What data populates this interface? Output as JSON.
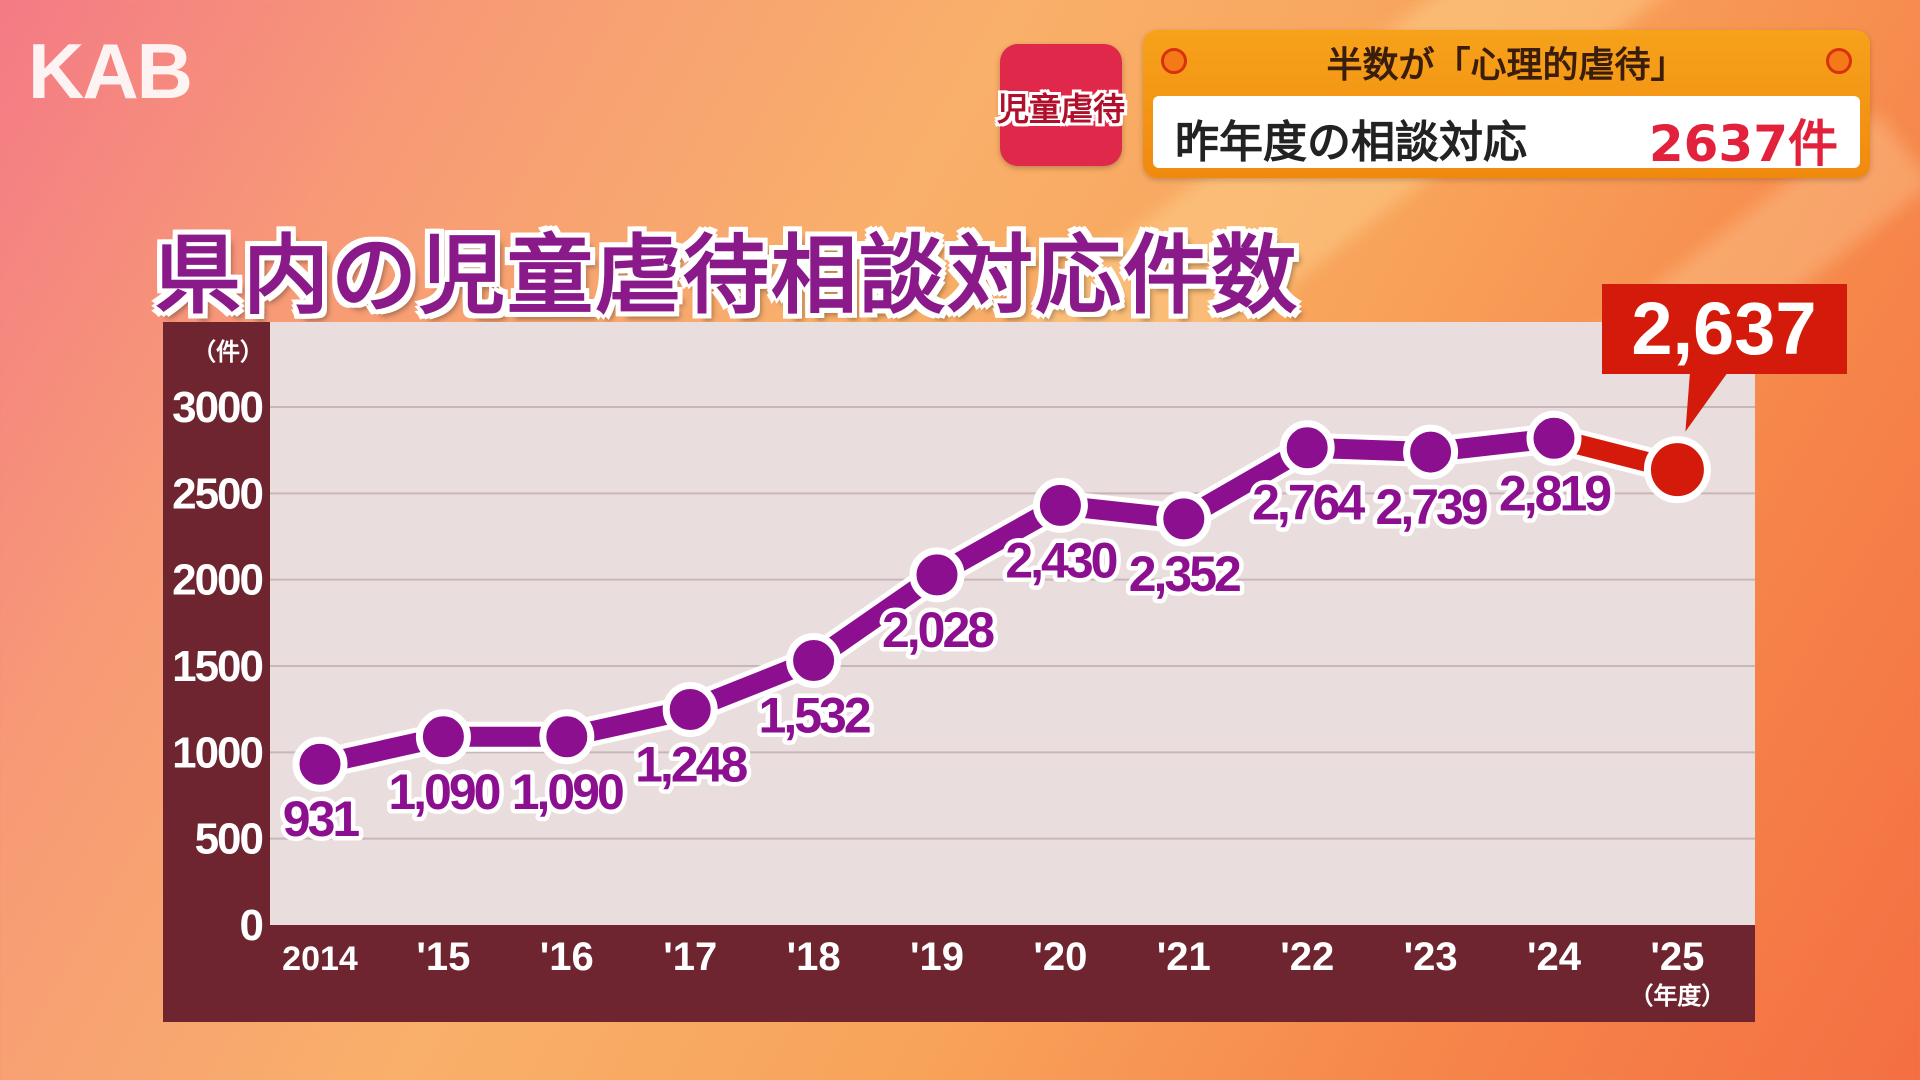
{
  "logo": "KAB",
  "topic_badge": "児童虐待",
  "headline": {
    "sub": "半数が「心理的虐待」",
    "main": "昨年度の相談対応",
    "value": "2637件"
  },
  "chart_data": {
    "type": "line",
    "title": "県内の児童虐待相談対応件数",
    "ylabel": "（件）",
    "xlabel": "（年度）",
    "categories": [
      "2014",
      "'15",
      "'16",
      "'17",
      "'18",
      "'19",
      "'20",
      "'21",
      "'22",
      "'23",
      "'24",
      "'25"
    ],
    "values": [
      931,
      1090,
      1090,
      1248,
      1532,
      2028,
      2430,
      2352,
      2764,
      2739,
      2819,
      2637
    ],
    "data_labels": [
      "931",
      "1,090",
      "1,090",
      "1,248",
      "1,532",
      "2,028",
      "2,430",
      "2,352",
      "2,764",
      "2,739",
      "2,819",
      "2,637"
    ],
    "ylim": [
      0,
      3000
    ],
    "yticks": [
      0,
      500,
      1000,
      1500,
      2000,
      2500,
      3000
    ],
    "grid": true,
    "highlight_index": 11,
    "colors": {
      "line": "#8c0f8f",
      "highlight": "#d41a0a",
      "axis_band": "#6e2530",
      "plot_bg": "#eadddd",
      "grid": "#c9b6b8"
    }
  }
}
